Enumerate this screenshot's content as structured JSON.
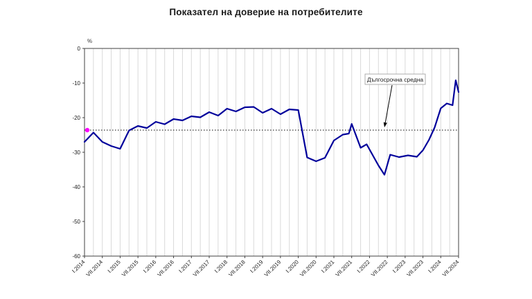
{
  "title": "Показател на доверие на потребителите",
  "chart_data": {
    "type": "line",
    "title": "Показател на доверие на потребителите",
    "y_axis": {
      "unit_label": "%",
      "min": -60,
      "max": 0,
      "ticks": [
        0,
        -10,
        -20,
        -30,
        -40,
        -50,
        -60
      ]
    },
    "x_axis": {
      "tick_step_years": 0.5,
      "gridline_step_years": 0.25,
      "start": 2014.0,
      "end": 2024.5,
      "tick_labels": [
        "I.2014",
        "VII.2014",
        "I.2015",
        "VII.2015",
        "I.2016",
        "VII.2016",
        "I.2017",
        "VII.2017",
        "I.2018",
        "VII.2018",
        "I.2019",
        "VII.2019",
        "I.2020",
        "VII.2020",
        "I.2021",
        "VII.2021",
        "I.2022",
        "VII.2022",
        "I.2023",
        "VII.2023",
        "I.2024",
        "VII.2024"
      ]
    },
    "series": [
      {
        "name": "Показател на доверие на потребителите",
        "color": "#00009B",
        "points": [
          [
            2014.0,
            -27.0
          ],
          [
            2014.25,
            -24.3
          ],
          [
            2014.5,
            -27.0
          ],
          [
            2014.75,
            -28.2
          ],
          [
            2015.0,
            -29.0
          ],
          [
            2015.25,
            -23.7
          ],
          [
            2015.5,
            -22.4
          ],
          [
            2015.75,
            -23.0
          ],
          [
            2016.0,
            -21.2
          ],
          [
            2016.25,
            -21.9
          ],
          [
            2016.5,
            -20.4
          ],
          [
            2016.75,
            -20.8
          ],
          [
            2017.0,
            -19.6
          ],
          [
            2017.25,
            -19.9
          ],
          [
            2017.5,
            -18.4
          ],
          [
            2017.75,
            -19.4
          ],
          [
            2018.0,
            -17.4
          ],
          [
            2018.25,
            -18.2
          ],
          [
            2018.5,
            -17.0
          ],
          [
            2018.75,
            -16.9
          ],
          [
            2019.0,
            -18.6
          ],
          [
            2019.25,
            -17.4
          ],
          [
            2019.5,
            -19.0
          ],
          [
            2019.75,
            -17.6
          ],
          [
            2020.0,
            -17.8
          ],
          [
            2020.25,
            -31.5
          ],
          [
            2020.5,
            -32.6
          ],
          [
            2020.75,
            -31.6
          ],
          [
            2021.0,
            -26.6
          ],
          [
            2021.25,
            -24.9
          ],
          [
            2021.42,
            -24.6
          ],
          [
            2021.5,
            -21.8
          ],
          [
            2021.75,
            -28.7
          ],
          [
            2021.92,
            -27.7
          ],
          [
            2022.25,
            -33.8
          ],
          [
            2022.42,
            -36.5
          ],
          [
            2022.58,
            -30.7
          ],
          [
            2022.83,
            -31.4
          ],
          [
            2023.08,
            -30.9
          ],
          [
            2023.33,
            -31.3
          ],
          [
            2023.5,
            -29.4
          ],
          [
            2023.67,
            -26.4
          ],
          [
            2023.83,
            -22.8
          ],
          [
            2024.0,
            -17.3
          ],
          [
            2024.17,
            -15.9
          ],
          [
            2024.33,
            -16.4
          ],
          [
            2024.42,
            -9.2
          ],
          [
            2024.5,
            -12.6
          ]
        ]
      }
    ],
    "long_term_average": {
      "value": -23.6,
      "label": "Дългосрочна средна",
      "marker_color": "#FF00FF",
      "line_style": "dotted"
    },
    "legend": "none",
    "grid": "vertical-only"
  }
}
